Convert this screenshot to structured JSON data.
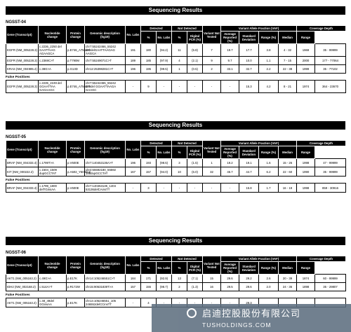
{
  "header_row1": [
    "Gene (Transcript)",
    "Nucleotide change",
    "Protein change",
    "Genomic description (hg19)",
    "No. Labs",
    "Detected",
    "Not Detected",
    "Variant Not Tested",
    "Variant Allele Fraction (VAF)",
    "Coverage Depth"
  ],
  "header_row2": [
    "No. Labs",
    "%",
    "No. Labs",
    "%",
    "Digital PCR (%)",
    "Average Reported (%)",
    "Standard Deviation",
    "Range (%)",
    "Median",
    "Range"
  ],
  "section1": {
    "title": "Sequencing Results",
    "label": "NGSST-04",
    "rows": [
      [
        "EGFR (NM_005228.3)",
        "c.2236_2250 del GAATTAAG AGAAGCA",
        "p.E746_A750del",
        "chr7:55242466_55242 480delGAATTAAGAG AAGCA",
        "191",
        "180",
        "(94.2)",
        "11",
        "(5.8)",
        "7",
        "19.7",
        "17.7",
        "3.8",
        "4 - 32",
        "1969",
        "35 - 99999"
      ],
      [
        "EGFR (NM_005228.3)",
        "c.2369C>T",
        "p.T790M",
        "chr7:55249071C>T",
        "189",
        "185",
        "(97.9)",
        "4",
        "(2.1)",
        "9",
        "9.7",
        "10.0",
        "1.1",
        "7 - 15",
        "2000",
        "177 - 77064"
      ],
      [
        "KRAS (NM_004985.4)",
        "c.38G>A",
        "p.G13D",
        "chr12:25398281C>T",
        "196",
        "195",
        "(99.5)",
        "1",
        "(0.5)",
        "2",
        "33.1",
        "32.7",
        "2.2",
        "22 - 38",
        "1999",
        "35 - 77102"
      ]
    ],
    "fp_label": "False Positives",
    "fp_rows": [
      [
        "EGFR (NM_005228.3)",
        "c.2235_2249 del GGAATTAA GAGAAGC",
        "p.E746_A750del",
        "chr7:55242465_55242 479del GGAATTAAGA GAAGC",
        "-",
        "9",
        "-",
        "-",
        "-",
        "-",
        "-",
        "15.3",
        "4.2",
        "8 - 21",
        "1974",
        "364 - 23670"
      ]
    ]
  },
  "section2": {
    "title": "Sequencing Results",
    "label": "NGSST-05",
    "rows": [
      [
        "BRAF (NM_004333.4)",
        "c.1799T>A",
        "p.V600E",
        "chr7:140453136A>T",
        "196",
        "193",
        "(98.5)",
        "3",
        "(1.5)",
        "1",
        "19.2",
        "19.1",
        "1.6",
        "15 - 26",
        "1998",
        "47 - 99999"
      ],
      [
        "KIT (NM_000222.2)",
        "c.1504_1509 dupGCCTAT",
        "p.A502_Y503dup",
        "chr4:55592180_55592 185dupGCCTAT",
        "167",
        "157",
        "(94.0)",
        "10",
        "(6.0)",
        "32",
        "46.7",
        "44.7",
        "6.2",
        "22 - 60",
        "1990",
        "35 - 99999"
      ]
    ],
    "fp_label": "False Positives",
    "fp_rows": [
      [
        "BRAF (NM_004333.4)",
        "c.1799_1800 delTGinsAA",
        "p.V600E",
        "chr7:140453135_1404 53136delCAinsTT",
        "-",
        "3",
        "-",
        "-",
        "-",
        "-",
        "-",
        "15.8",
        "1.7",
        "16 - 19",
        "1998",
        "859 - 30916"
      ]
    ]
  },
  "section3": {
    "title": "Sequencing Results",
    "label": "NGSST-06",
    "rows": [
      [
        "AKT1 (NM_005163.2)",
        "c.49G>A",
        "p.E17K",
        "chr14:105246551C>T",
        "184",
        "171",
        "(92.9)",
        "13",
        "(7.1)",
        "15",
        "29.6",
        "29.2",
        "2.6",
        "20 - 39",
        "1874",
        "60 - 99999"
      ],
      [
        "IDH2 (NM_002168.2)",
        "c.514A>T",
        "p.R172W",
        "chr15:90631839T>A",
        "157",
        "155",
        "(98.7)",
        "2",
        "(1.3)",
        "16",
        "29.5",
        "29.6",
        "2.0",
        "24 - 36",
        "1898",
        "35 - 29807"
      ]
    ],
    "fp_label": "False Positives",
    "fp_rows": [
      [
        "AKT1 (NM_005163.2)",
        "c.48_49del GGinsAA",
        "p.E17K",
        "chr14:105246551_105 246552delCCinsTT",
        "-",
        "4",
        "-",
        "-",
        "-",
        "-",
        "-",
        "29.3",
        "",
        "",
        "",
        ""
      ]
    ]
  },
  "watermark": {
    "chinese": "启迪控股股份有限公司",
    "english": "TUSHOLDINGS.COM"
  }
}
